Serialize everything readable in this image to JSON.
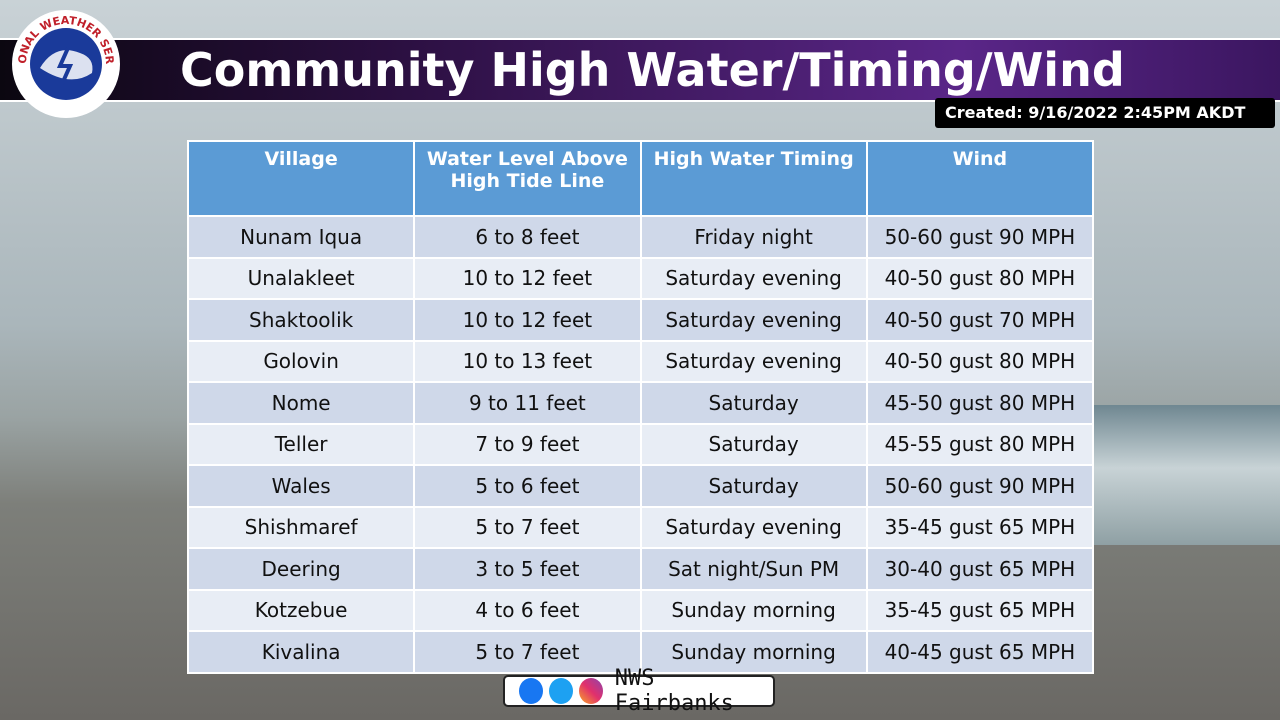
{
  "header": {
    "logo": "NATIONAL WEATHER SERVICE",
    "title": "Community High Water/Timing/Wind",
    "created": "Created: 9/16/2022 2:45PM AKDT"
  },
  "table": {
    "columns": [
      "Village",
      "Water Level Above High Tide Line",
      "High Water Timing",
      "Wind"
    ],
    "rows": [
      [
        "Nunam Iqua",
        "6 to 8 feet",
        "Friday night",
        "50-60 gust 90 MPH"
      ],
      [
        "Unalakleet",
        "10 to 12 feet",
        "Saturday evening",
        "40-50 gust 80 MPH"
      ],
      [
        "Shaktoolik",
        "10 to 12 feet",
        "Saturday evening",
        "40-50 gust 70 MPH"
      ],
      [
        "Golovin",
        "10 to 13 feet",
        "Saturday evening",
        "40-50 gust 80 MPH"
      ],
      [
        "Nome",
        "9 to 11 feet",
        "Saturday",
        "45-50 gust 80 MPH"
      ],
      [
        "Teller",
        "7 to 9 feet",
        "Saturday",
        "45-55 gust 80 MPH"
      ],
      [
        "Wales",
        "5 to 6 feet",
        "Saturday",
        "50-60 gust 90 MPH"
      ],
      [
        "Shishmaref",
        "5 to 7 feet",
        "Saturday evening",
        "35-45 gust 65 MPH"
      ],
      [
        "Deering",
        "3 to 5 feet",
        "Sat night/Sun PM",
        "30-40 gust 65 MPH"
      ],
      [
        "Kotzebue",
        "4 to 6 feet",
        "Sunday morning",
        "35-45 gust 65 MPH"
      ],
      [
        "Kivalina",
        "5 to 7 feet",
        "Sunday morning",
        "40-45 gust 65 MPH"
      ]
    ]
  },
  "footer": {
    "label": "NWS Fairbanks"
  }
}
